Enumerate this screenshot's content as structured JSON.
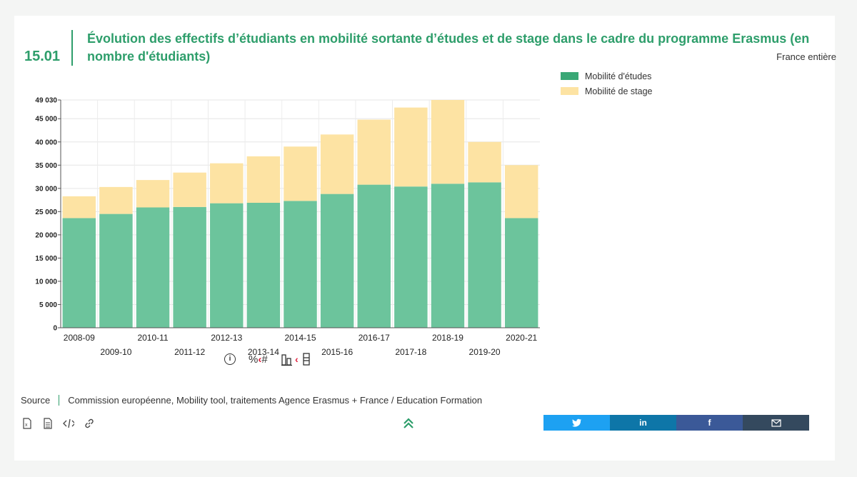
{
  "header": {
    "figure_number": "15.01",
    "title": "Évolution des effectifs d’étudiants en mobilité sortante d’études et de stage dans le cadre du programme Erasmus (en nombre d'étudiants)",
    "scope": "France entière"
  },
  "legend": {
    "items": [
      {
        "label": "Mobilité d'études",
        "color": "#3aa876"
      },
      {
        "label": "Mobilité de stage",
        "color": "#fde3a3"
      }
    ]
  },
  "chart_data": {
    "type": "bar",
    "stacked": true,
    "categories": [
      "2008-09",
      "2009-10",
      "2010-11",
      "2011-12",
      "2012-13",
      "2013-14",
      "2014-15",
      "2015-16",
      "2016-17",
      "2017-18",
      "2018-19",
      "2019-20",
      "2020-21"
    ],
    "series": [
      {
        "name": "Mobilité d'études",
        "color": "#6cc49c",
        "values": [
          23600,
          24500,
          25900,
          26000,
          26800,
          26900,
          27300,
          28800,
          30800,
          30400,
          31000,
          31300,
          23600
        ]
      },
      {
        "name": "Mobilité de stage",
        "color": "#fde3a3",
        "values": [
          4700,
          5800,
          5900,
          7400,
          8600,
          10000,
          11700,
          12800,
          14000,
          17000,
          18030,
          8700,
          11400
        ]
      }
    ],
    "ylim": [
      0,
      49030
    ],
    "yticks": [
      "0",
      "5 000",
      "10 000",
      "15 000",
      "20 000",
      "25 000",
      "30 000",
      "35 000",
      "40 000",
      "45 000",
      "49 030"
    ],
    "ytick_values": [
      0,
      5000,
      10000,
      15000,
      20000,
      25000,
      30000,
      35000,
      40000,
      45000,
      49030
    ],
    "grid": true,
    "legend_position": "right"
  },
  "controls": {
    "info_icon": "info-icon",
    "percent_label": "%",
    "hash_label": "#",
    "toggle_glyph": "‹"
  },
  "source": {
    "label": "Source",
    "text": "Commission européenne, Mobility tool, traitements Agence Erasmus + France / Education Formation"
  },
  "share": {
    "twitter_color": "#1da1f2",
    "linkedin_color": "#0e76a8",
    "facebook_color": "#3b5998",
    "email_color": "#34495e"
  }
}
